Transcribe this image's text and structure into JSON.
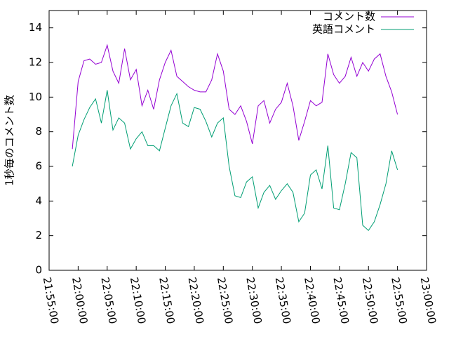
{
  "chart_data": {
    "type": "line",
    "y_label": "1秒毎のコメント数",
    "x": [
      "21:59:00",
      "22:00:00",
      "22:01:00",
      "22:02:00",
      "22:03:00",
      "22:04:00",
      "22:05:00",
      "22:06:00",
      "22:07:00",
      "22:08:00",
      "22:09:00",
      "22:10:00",
      "22:11:00",
      "22:12:00",
      "22:13:00",
      "22:14:00",
      "22:15:00",
      "22:16:00",
      "22:17:00",
      "22:18:00",
      "22:19:00",
      "22:20:00",
      "22:21:00",
      "22:22:00",
      "22:23:00",
      "22:24:00",
      "22:25:00",
      "22:26:00",
      "22:27:00",
      "22:28:00",
      "22:29:00",
      "22:30:00",
      "22:31:00",
      "22:32:00",
      "22:33:00",
      "22:34:00",
      "22:35:00",
      "22:36:00",
      "22:37:00",
      "22:38:00",
      "22:39:00",
      "22:40:00",
      "22:41:00",
      "22:42:00",
      "22:43:00",
      "22:44:00",
      "22:45:00",
      "22:46:00",
      "22:47:00",
      "22:48:00",
      "22:49:00",
      "22:50:00",
      "22:51:00",
      "22:52:00",
      "22:53:00",
      "22:54:00",
      "22:55:00"
    ],
    "series": [
      {
        "name": "コメント数",
        "color": "#9400d3",
        "values": [
          7.0,
          10.9,
          12.1,
          12.2,
          11.9,
          12.0,
          13.0,
          11.5,
          10.8,
          12.8,
          11.0,
          11.6,
          9.5,
          10.4,
          9.3,
          11.0,
          12.0,
          12.7,
          11.2,
          10.9,
          10.6,
          10.4,
          10.3,
          10.3,
          11.0,
          12.5,
          11.5,
          9.3,
          9.0,
          9.5,
          8.6,
          7.3,
          9.5,
          9.8,
          8.5,
          9.3,
          9.7,
          10.8,
          9.5,
          7.5,
          8.6,
          9.8,
          9.5,
          9.7,
          12.5,
          11.3,
          10.8,
          11.2,
          12.3,
          11.2,
          12.0,
          11.5,
          12.2,
          12.5,
          11.2,
          10.3,
          9.0
        ]
      },
      {
        "name": "英語コメント",
        "color": "#009e73",
        "values": [
          6.0,
          7.8,
          8.7,
          9.4,
          9.9,
          8.5,
          10.4,
          8.1,
          8.8,
          8.5,
          7.0,
          7.6,
          8.0,
          7.2,
          7.2,
          6.9,
          8.2,
          9.5,
          10.2,
          8.5,
          8.3,
          9.4,
          9.3,
          8.6,
          7.7,
          8.5,
          8.8,
          6.0,
          4.3,
          4.2,
          5.1,
          5.4,
          3.6,
          4.5,
          4.9,
          4.1,
          4.6,
          5.0,
          4.5,
          2.8,
          3.3,
          5.5,
          5.8,
          4.7,
          7.2,
          3.6,
          3.5,
          5.0,
          6.8,
          6.5,
          2.6,
          2.3,
          2.8,
          3.8,
          5.0,
          6.9,
          5.8
        ]
      }
    ],
    "xlim": [
      "21:55:00",
      "23:00:00"
    ],
    "xticks": [
      "21:55:00",
      "22:00:00",
      "22:05:00",
      "22:10:00",
      "22:15:00",
      "22:20:00",
      "22:25:00",
      "22:30:00",
      "22:35:00",
      "22:40:00",
      "22:45:00",
      "22:50:00",
      "22:55:00",
      "23:00:00"
    ],
    "ylim": [
      0,
      15
    ],
    "yticks": [
      0,
      2,
      4,
      6,
      8,
      10,
      12,
      14
    ],
    "legend": "top-right"
  }
}
